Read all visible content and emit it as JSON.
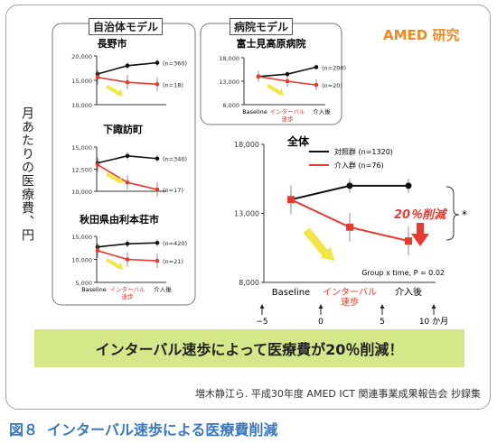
{
  "brand": "AMED 研究",
  "y_axis_label": "月あたりの医療費、円",
  "banner_text": "インターバル速歩によって医療費が20％削減！",
  "citation": "増木静江ら. 平成30年度 AMED ICT 関連事業成果報告会 抄録集",
  "figure_number": "図８",
  "figure_caption": "インターバル速歩による医療費削減",
  "groups": {
    "municipal": "自治体モデル",
    "hospital": "病院モデル"
  },
  "x_labels": {
    "baseline": "Baseline",
    "interval_small": "インターバル速歩",
    "interval_l1": "インターバル",
    "interval_l2": "速歩",
    "after": "介入後"
  },
  "colors": {
    "control": "#111111",
    "intervention": "#e83a2e",
    "arrow": "#f2e54a",
    "reduction": "#e83a2e"
  },
  "chart_data": [
    {
      "id": "nagano",
      "type": "line",
      "title": "長野市",
      "categories": [
        "Baseline",
        "インターバル速歩",
        "介入後"
      ],
      "ylim": [
        10000,
        20000
      ],
      "yticks": [
        "20,000",
        "15,000",
        "10,000"
      ],
      "series": [
        {
          "name": "(n=360)",
          "values": [
            16300,
            18000,
            18600
          ]
        },
        {
          "name": "(n=18)",
          "values": [
            15600,
            14600,
            14200
          ]
        }
      ]
    },
    {
      "id": "shimosuwa",
      "type": "line",
      "title": "下諏訪町",
      "categories": [
        "Baseline",
        "インターバル速歩",
        "介入後"
      ],
      "ylim": [
        10000,
        15000
      ],
      "yticks": [
        "15,000",
        "12,500",
        "10,000"
      ],
      "series": [
        {
          "name": "(n=340)",
          "values": [
            13200,
            14000,
            13700
          ]
        },
        {
          "name": "(n=17)",
          "values": [
            13000,
            11000,
            10200
          ]
        }
      ]
    },
    {
      "id": "yurihonjo",
      "type": "line",
      "title": "秋田県由利本荘市",
      "categories": [
        "Baseline",
        "インターバル速歩",
        "介入後"
      ],
      "ylim": [
        5000,
        15000
      ],
      "yticks": [
        "15,000",
        "10,000",
        "5,000"
      ],
      "series": [
        {
          "name": "(n=420)",
          "values": [
            12700,
            13400,
            13600
          ]
        },
        {
          "name": "(n=21)",
          "values": [
            11900,
            10000,
            9700
          ]
        }
      ]
    },
    {
      "id": "fujimi",
      "type": "line",
      "title": "富士見高原病院",
      "categories": [
        "Baseline",
        "インターバル速歩",
        "介入後"
      ],
      "ylim": [
        8000,
        18000
      ],
      "yticks": [
        "18,000",
        "13,000",
        "8,000"
      ],
      "series": [
        {
          "name": "(n=200)",
          "values": [
            14000,
            14500,
            16000
          ]
        },
        {
          "name": "(n=20)",
          "values": [
            14000,
            13000,
            12200
          ]
        }
      ]
    },
    {
      "id": "overall",
      "type": "line",
      "title": "全体",
      "categories": [
        "Baseline",
        "インターバル速歩",
        "介入後"
      ],
      "ylim": [
        8000,
        18000
      ],
      "yticks": [
        "18,000",
        "13,000",
        "8,000"
      ],
      "series": [
        {
          "name": "対照群 (n=1320)",
          "values": [
            14000,
            15000,
            15000
          ]
        },
        {
          "name": "介入群 (n=76)",
          "values": [
            14000,
            12000,
            11000
          ]
        }
      ],
      "annotations": [
        "20％削減",
        "*",
        "Group x time, P = 0.02"
      ],
      "time_ticks": [
        "−5",
        "0",
        "5",
        "10 か月"
      ]
    }
  ]
}
